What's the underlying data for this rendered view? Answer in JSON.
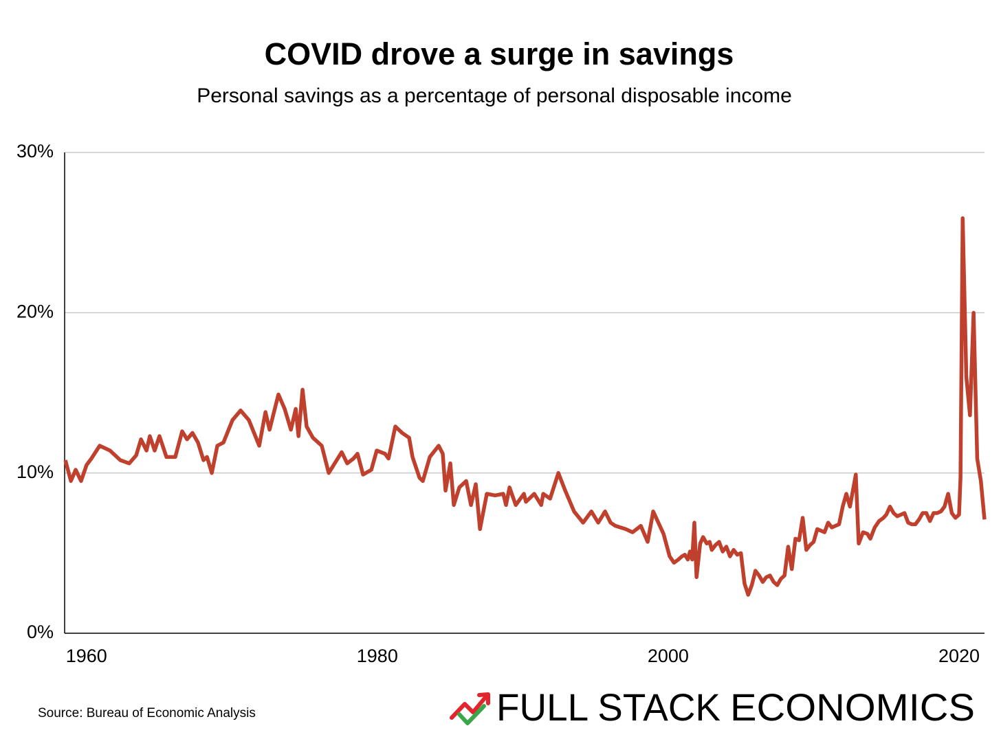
{
  "chart_data": {
    "type": "line",
    "title": "COVID drove a surge in savings",
    "subtitle": "Personal savings as a percentage of personal disposable income",
    "source": "Source: Bureau of Economic Analysis",
    "x": [
      1958.55,
      1958.93,
      1959.26,
      1959.63,
      1960.01,
      1960.34,
      1960.91,
      1961.62,
      1962.33,
      1962.94,
      1963.42,
      1963.75,
      1964.13,
      1964.36,
      1964.69,
      1965.02,
      1965.5,
      1966.11,
      1966.58,
      1966.92,
      1967.29,
      1967.67,
      1968.05,
      1968.29,
      1968.62,
      1969.0,
      1969.42,
      1970.04,
      1970.6,
      1971.17,
      1971.88,
      1972.31,
      1972.59,
      1973.2,
      1973.63,
      1974.06,
      1974.39,
      1974.58,
      1974.86,
      1975.14,
      1975.57,
      1976.18,
      1976.66,
      1977.55,
      1977.93,
      1978.36,
      1978.64,
      1979.02,
      1979.59,
      1979.96,
      1980.53,
      1980.77,
      1981.24,
      1981.71,
      1982.19,
      1982.42,
      1982.9,
      1983.13,
      1983.61,
      1984.22,
      1984.5,
      1984.69,
      1985.02,
      1985.26,
      1985.64,
      1986.11,
      1986.44,
      1986.77,
      1987.06,
      1987.53,
      1988.1,
      1988.66,
      1988.85,
      1989.09,
      1989.52,
      1990.08,
      1990.22,
      1990.79,
      1991.27,
      1991.41,
      1991.88,
      1992.45,
      1992.92,
      1993.53,
      1994.15,
      1994.72,
      1995.19,
      1995.66,
      1996.04,
      1996.37,
      1997.08,
      1997.55,
      1998.12,
      1998.59,
      1998.97,
      1999.68,
      2000.1,
      2000.4,
      2000.7,
      2000.95,
      2001.15,
      2001.35,
      2001.5,
      2001.65,
      2001.8,
      2001.95,
      2002.2,
      2002.4,
      2002.65,
      2002.85,
      2003.0,
      2003.25,
      2003.5,
      2003.75,
      2004.0,
      2004.25,
      2004.5,
      2004.75,
      2005.0,
      2005.25,
      2005.5,
      2005.75,
      2006.0,
      2006.25,
      2006.5,
      2006.75,
      2007.0,
      2007.25,
      2007.5,
      2007.75,
      2008.0,
      2008.25,
      2008.5,
      2008.75,
      2009.0,
      2009.25,
      2009.5,
      2009.75,
      2010.0,
      2010.25,
      2010.5,
      2010.75,
      2011.0,
      2011.25,
      2011.5,
      2011.75,
      2012.0,
      2012.25,
      2012.5,
      2012.9,
      2013.1,
      2013.4,
      2013.7,
      2013.9,
      2014.2,
      2014.5,
      2014.8,
      2015.0,
      2015.25,
      2015.5,
      2015.75,
      2016.0,
      2016.25,
      2016.5,
      2016.75,
      2017.0,
      2017.25,
      2017.5,
      2017.75,
      2018.0,
      2018.25,
      2018.5,
      2018.75,
      2019.0,
      2019.25,
      2019.5,
      2019.75,
      2020.0,
      2020.1,
      2020.25,
      2020.5,
      2020.75,
      2021.0,
      2021.25,
      2021.5,
      2021.75
    ],
    "series": [
      {
        "color": "#c0402e",
        "values": [
          10.8,
          9.5,
          10.2,
          9.5,
          10.5,
          10.9,
          11.7,
          11.4,
          10.8,
          10.6,
          11.1,
          12.1,
          11.4,
          12.3,
          11.4,
          12.3,
          11.0,
          11.0,
          12.6,
          12.1,
          12.5,
          11.9,
          10.8,
          11.0,
          10.0,
          11.7,
          11.9,
          13.3,
          13.9,
          13.3,
          11.7,
          13.8,
          12.7,
          14.9,
          14.0,
          12.7,
          14.0,
          12.3,
          15.2,
          12.9,
          12.2,
          11.7,
          10.0,
          11.3,
          10.6,
          10.9,
          11.2,
          9.9,
          10.2,
          11.4,
          11.2,
          10.9,
          12.9,
          12.5,
          12.2,
          11.0,
          9.7,
          9.5,
          11.0,
          11.7,
          11.2,
          8.9,
          10.6,
          8.0,
          9.1,
          9.5,
          8.0,
          9.3,
          6.5,
          8.7,
          8.6,
          8.7,
          8.0,
          9.1,
          8.0,
          8.7,
          8.2,
          8.7,
          8.0,
          8.7,
          8.4,
          10.0,
          8.9,
          7.6,
          6.9,
          7.6,
          6.9,
          7.6,
          6.9,
          6.7,
          6.5,
          6.3,
          6.7,
          5.7,
          7.6,
          6.2,
          4.8,
          4.4,
          4.6,
          4.8,
          4.9,
          4.6,
          5.1,
          4.6,
          6.9,
          3.5,
          5.6,
          6.0,
          5.6,
          5.7,
          5.2,
          5.5,
          5.7,
          5.1,
          5.4,
          4.8,
          5.2,
          4.9,
          5.0,
          3.1,
          2.4,
          3.0,
          3.9,
          3.6,
          3.2,
          3.5,
          3.6,
          3.2,
          3.0,
          3.4,
          3.6,
          5.4,
          4.0,
          5.9,
          5.8,
          7.2,
          5.2,
          5.5,
          5.7,
          6.5,
          6.4,
          6.3,
          6.9,
          6.6,
          6.7,
          6.8,
          7.9,
          8.7,
          7.9,
          9.9,
          5.6,
          6.3,
          6.2,
          5.9,
          6.6,
          7.0,
          7.2,
          7.4,
          7.9,
          7.5,
          7.3,
          7.4,
          7.5,
          6.9,
          6.8,
          6.8,
          7.1,
          7.5,
          7.5,
          7.0,
          7.5,
          7.5,
          7.6,
          7.9,
          8.7,
          7.5,
          7.2,
          7.4,
          9.7,
          25.9,
          16.0,
          13.6,
          20.0,
          10.9,
          9.5,
          7.1
        ]
      }
    ],
    "xlim": [
      1958.5,
      2021.75
    ],
    "xticks": [
      1960,
      1980,
      2000,
      2020
    ],
    "ylim": [
      0,
      30
    ],
    "yticks": [
      {
        "value": 0,
        "label": "0%"
      },
      {
        "value": 10,
        "label": "10%"
      },
      {
        "value": 20,
        "label": "20%"
      },
      {
        "value": 30,
        "label": "30%"
      }
    ],
    "grid": true
  },
  "logo": {
    "first": "FULL STACK",
    "second": "ECONOMICS",
    "first_color": "#e3262d",
    "second_color": "#3aa84a"
  }
}
